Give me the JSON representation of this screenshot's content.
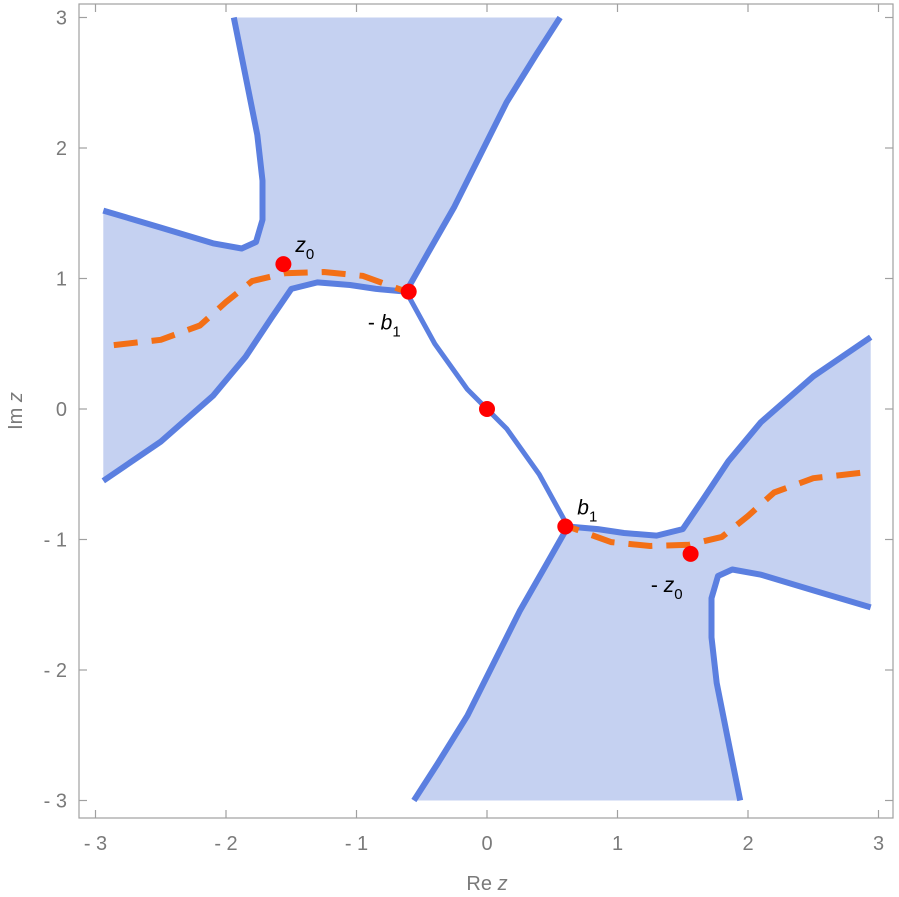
{
  "chart_data": {
    "type": "region-plot",
    "xlabel_prefix": "Re",
    "xlabel_var": "z",
    "ylabel_prefix": "Im",
    "ylabel_var": "z",
    "xlim": [
      -3,
      3
    ],
    "ylim": [
      -3,
      3
    ],
    "xticks": [
      -3,
      -2,
      -1,
      0,
      1,
      2,
      3
    ],
    "yticks": [
      -3,
      -2,
      -1,
      0,
      1,
      2,
      3
    ],
    "xtick_labels": [
      "- 3",
      "- 2",
      "- 1",
      "0",
      "1",
      "2",
      "3"
    ],
    "ytick_labels": [
      "- 3",
      "- 2",
      "- 1",
      "0",
      "1",
      "2",
      "3"
    ],
    "colors": {
      "region_fill": "#c5d1f1",
      "boundary": "#5b7fe0",
      "path": "#f36f16",
      "points": "#ff0000",
      "frame": "#a0a0a0"
    },
    "regions": [
      {
        "name": "upper-left",
        "lower_branch": [
          [
            -2.94,
            1.52
          ],
          [
            -2.5,
            1.39
          ],
          [
            -2.1,
            1.27
          ],
          [
            -1.88,
            1.23
          ],
          [
            -1.77,
            1.28
          ],
          [
            -1.72,
            1.45
          ],
          [
            -1.72,
            1.75
          ],
          [
            -1.76,
            2.1
          ],
          [
            -1.84,
            2.5
          ],
          [
            -1.94,
            3.0
          ]
        ],
        "upper_branch": [
          [
            -0.62,
            0.9
          ],
          [
            -0.45,
            1.2
          ],
          [
            -0.25,
            1.55
          ],
          [
            -0.05,
            1.95
          ],
          [
            0.15,
            2.35
          ],
          [
            0.38,
            2.72
          ],
          [
            0.56,
            3.0
          ]
        ],
        "mid_branch": [
          [
            -0.62,
            0.9
          ],
          [
            -0.85,
            0.92
          ],
          [
            -1.05,
            0.95
          ],
          [
            -1.3,
            0.97
          ],
          [
            -1.5,
            0.92
          ],
          [
            -1.65,
            0.7
          ],
          [
            -1.85,
            0.4
          ],
          [
            -2.1,
            0.1
          ],
          [
            -2.5,
            -0.25
          ],
          [
            -2.94,
            -0.55
          ]
        ]
      },
      {
        "name": "lower-right",
        "lower_branch": [
          [
            2.94,
            -1.52
          ],
          [
            2.5,
            -1.39
          ],
          [
            2.1,
            -1.27
          ],
          [
            1.88,
            -1.23
          ],
          [
            1.77,
            -1.28
          ],
          [
            1.72,
            -1.45
          ],
          [
            1.72,
            -1.75
          ],
          [
            1.76,
            -2.1
          ],
          [
            1.84,
            -2.5
          ],
          [
            1.94,
            -3.0
          ]
        ],
        "upper_branch": [
          [
            0.62,
            -0.9
          ],
          [
            0.45,
            -1.2
          ],
          [
            0.25,
            -1.55
          ],
          [
            0.05,
            -1.95
          ],
          [
            -0.15,
            -2.35
          ],
          [
            -0.38,
            -2.72
          ],
          [
            -0.56,
            -3.0
          ]
        ],
        "mid_branch": [
          [
            0.62,
            -0.9
          ],
          [
            0.85,
            -0.92
          ],
          [
            1.05,
            -0.95
          ],
          [
            1.3,
            -0.97
          ],
          [
            1.5,
            -0.92
          ],
          [
            1.65,
            -0.7
          ],
          [
            1.85,
            -0.4
          ],
          [
            2.1,
            -0.1
          ],
          [
            2.5,
            0.25
          ],
          [
            2.94,
            0.55
          ]
        ]
      }
    ],
    "connector": [
      [
        -0.62,
        0.9
      ],
      [
        -0.4,
        0.5
      ],
      [
        -0.15,
        0.15
      ],
      [
        0.0,
        0.0
      ],
      [
        0.15,
        -0.15
      ],
      [
        0.4,
        -0.5
      ],
      [
        0.62,
        -0.9
      ]
    ],
    "dashed_paths": [
      [
        [
          -2.86,
          0.49
        ],
        [
          -2.5,
          0.53
        ],
        [
          -2.2,
          0.64
        ],
        [
          -2.0,
          0.82
        ],
        [
          -1.8,
          0.98
        ],
        [
          -1.55,
          1.04
        ],
        [
          -1.25,
          1.05
        ],
        [
          -0.95,
          1.02
        ],
        [
          -0.62,
          0.9
        ]
      ],
      [
        [
          2.86,
          -0.49
        ],
        [
          2.5,
          -0.53
        ],
        [
          2.2,
          -0.64
        ],
        [
          2.0,
          -0.82
        ],
        [
          1.8,
          -0.98
        ],
        [
          1.55,
          -1.04
        ],
        [
          1.25,
          -1.05
        ],
        [
          0.95,
          -1.02
        ],
        [
          0.62,
          -0.9
        ]
      ]
    ],
    "points": [
      {
        "x": -1.56,
        "y": 1.11,
        "label_var": "z",
        "label_sub": "0",
        "label_prefix": "",
        "anchor": "ne"
      },
      {
        "x": -0.6,
        "y": 0.9,
        "label_var": "b",
        "label_sub": "1",
        "label_prefix": "- ",
        "anchor": "sw"
      },
      {
        "x": 0.0,
        "y": 0.0,
        "label_var": "",
        "label_sub": "",
        "label_prefix": "",
        "anchor": "none"
      },
      {
        "x": 0.6,
        "y": -0.9,
        "label_var": "b",
        "label_sub": "1",
        "label_prefix": "",
        "anchor": "ne"
      },
      {
        "x": 1.56,
        "y": -1.11,
        "label_var": "z",
        "label_sub": "0",
        "label_prefix": "- ",
        "anchor": "sw"
      }
    ]
  }
}
